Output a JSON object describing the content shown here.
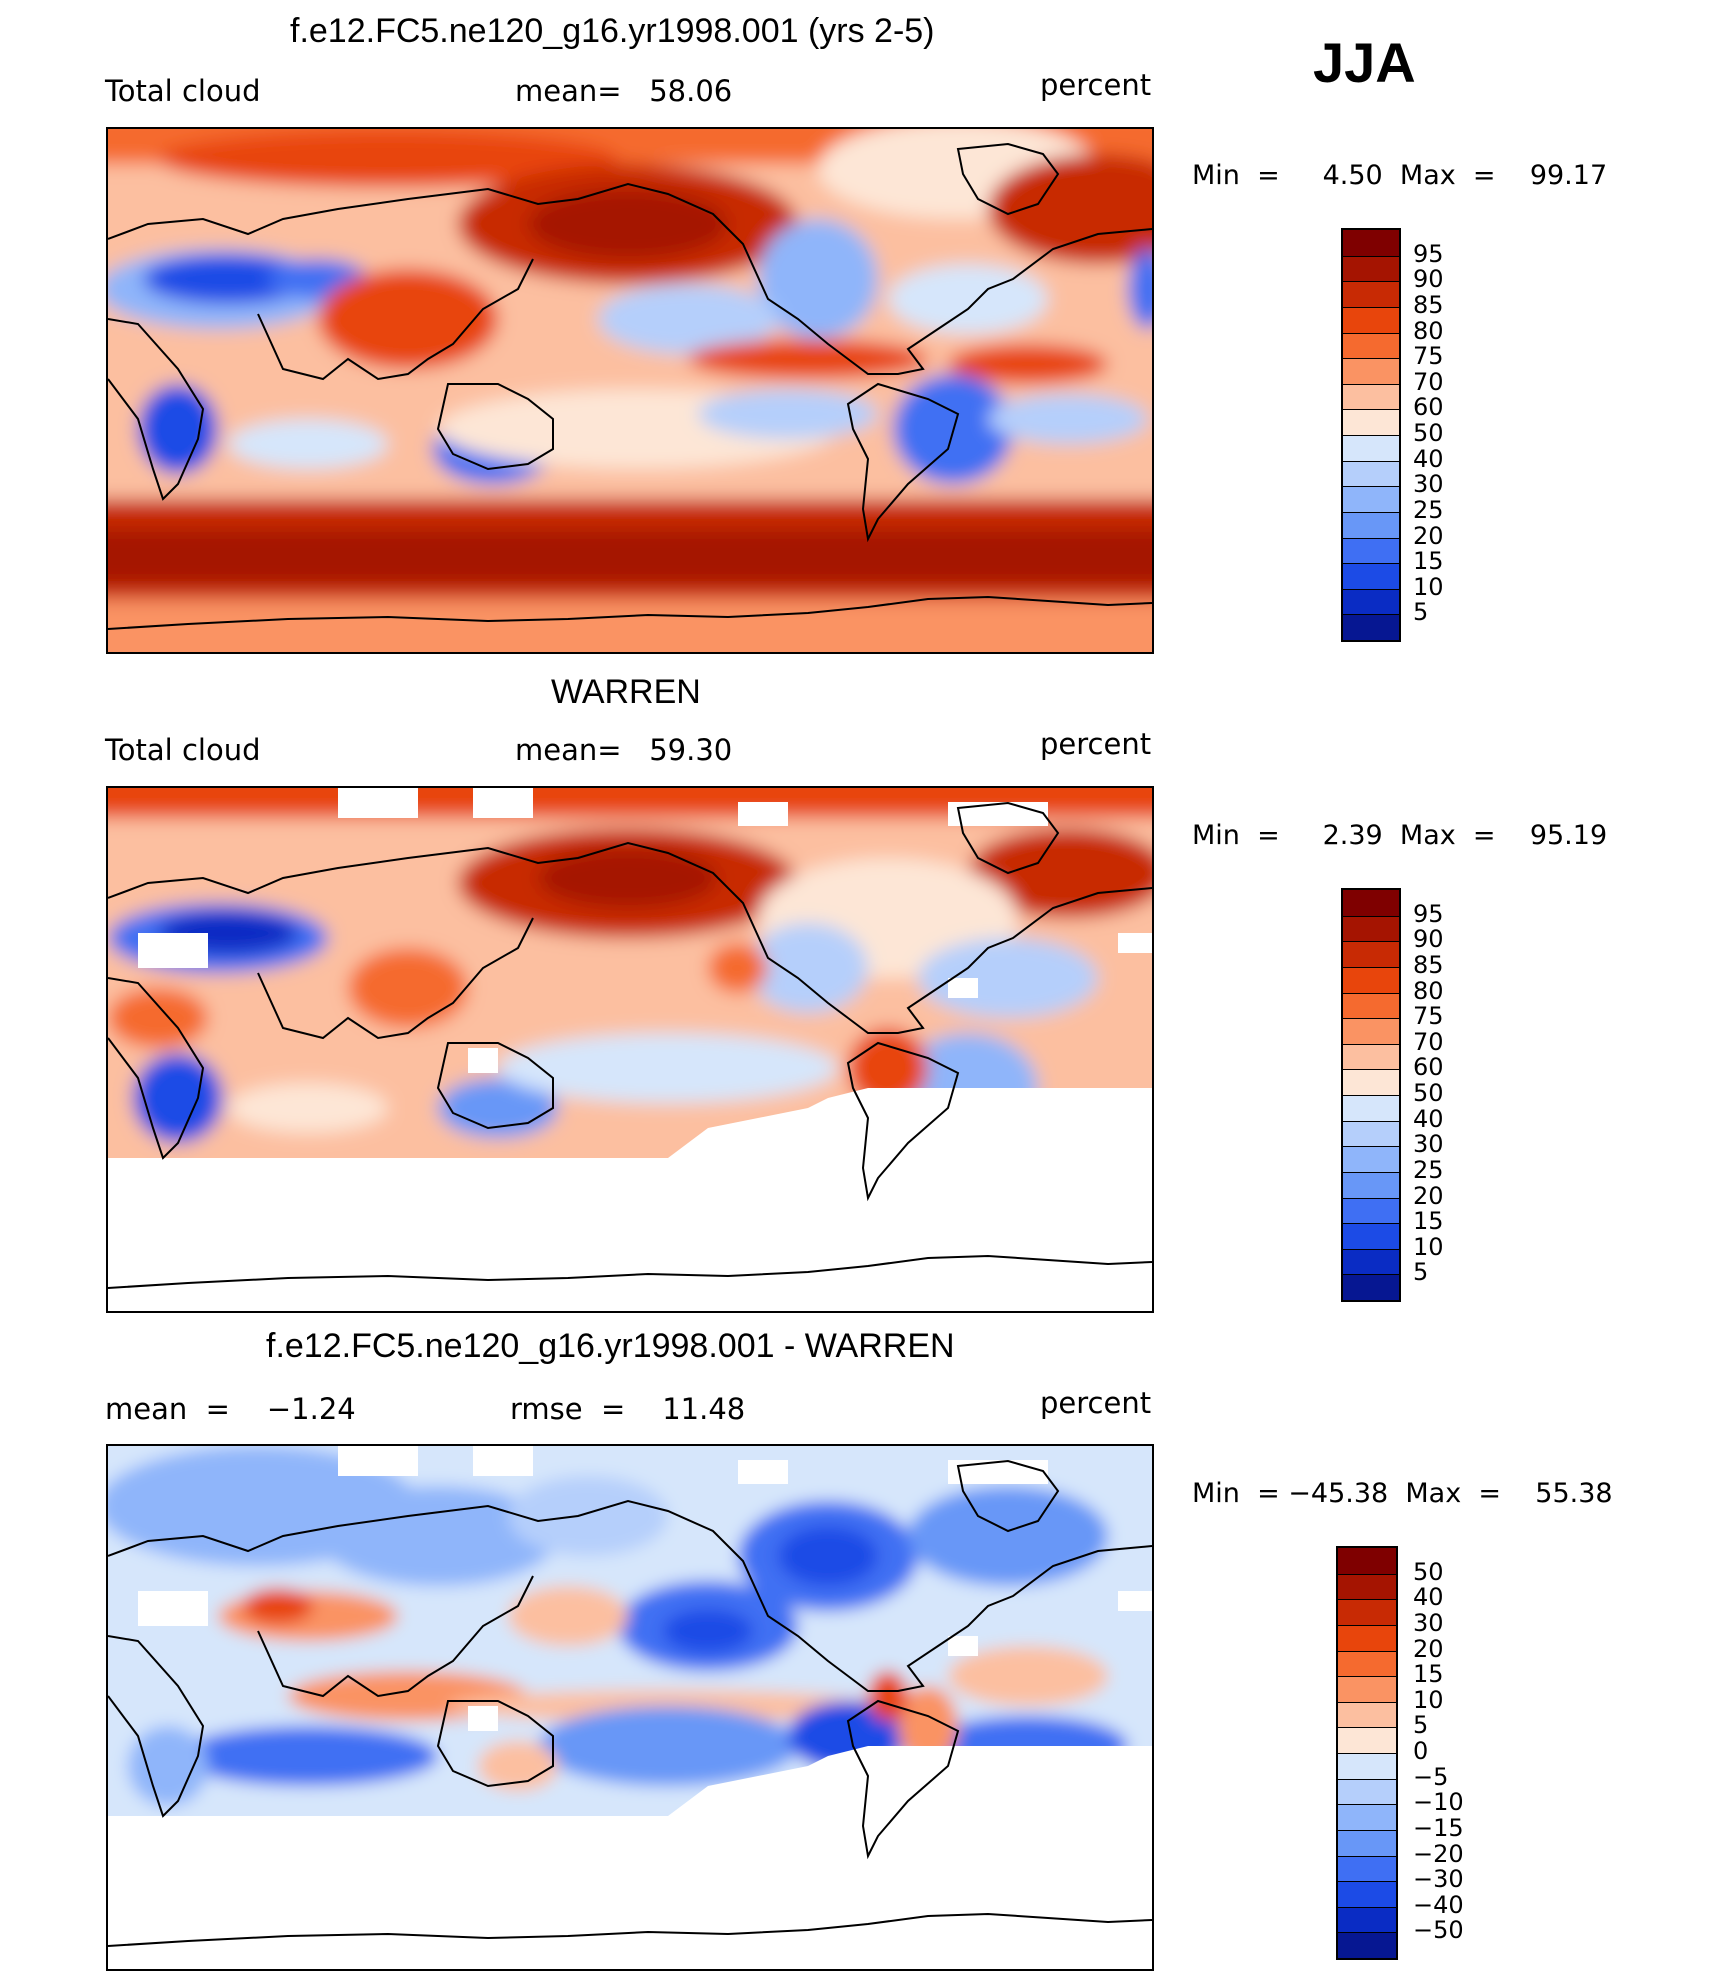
{
  "season_label": "JJA",
  "panels": [
    {
      "title": "f.e12.FC5.ne120_g16.yr1998.001 (yrs 2-5)",
      "left_text": "Total cloud",
      "center_text": "mean=   58.06",
      "units": "percent",
      "minmax": "Min  =     4.50  Max  =    99.17",
      "colorbar": {
        "labels": [
          "95",
          "90",
          "85",
          "80",
          "75",
          "70",
          "60",
          "50",
          "40",
          "30",
          "25",
          "20",
          "15",
          "10",
          "5"
        ],
        "colors": [
          "#7f0000",
          "#a51401",
          "#c82a04",
          "#e8450c",
          "#f56a2f",
          "#fa9363",
          "#fcbfa0",
          "#fde6d6",
          "#d6e6fb",
          "#b5cffb",
          "#8fb5fa",
          "#6897f7",
          "#3f6ff3",
          "#1c4be6",
          "#0a2cc4",
          "#061792"
        ]
      }
    },
    {
      "title": "WARREN",
      "left_text": "Total cloud",
      "center_text": "mean=   59.30",
      "units": "percent",
      "minmax": "Min  =     2.39  Max  =    95.19",
      "colorbar": {
        "labels": [
          "95",
          "90",
          "85",
          "80",
          "75",
          "70",
          "60",
          "50",
          "40",
          "30",
          "25",
          "20",
          "15",
          "10",
          "5"
        ],
        "colors": [
          "#7f0000",
          "#a51401",
          "#c82a04",
          "#e8450c",
          "#f56a2f",
          "#fa9363",
          "#fcbfa0",
          "#fde6d6",
          "#d6e6fb",
          "#b5cffb",
          "#8fb5fa",
          "#6897f7",
          "#3f6ff3",
          "#1c4be6",
          "#0a2cc4",
          "#061792"
        ]
      }
    },
    {
      "title": "f.e12.FC5.ne120_g16.yr1998.001 - WARREN",
      "left_text": "mean  =    −1.24",
      "center_text": "rmse  =    11.48",
      "units": "percent",
      "minmax": "Min  = −45.38  Max  =    55.38",
      "colorbar": {
        "labels": [
          "50",
          "40",
          "30",
          "20",
          "15",
          "10",
          "5",
          "0",
          "−5",
          "−10",
          "−15",
          "−20",
          "−30",
          "−40",
          "−50"
        ],
        "colors": [
          "#7f0000",
          "#a51401",
          "#c82a04",
          "#e8450c",
          "#f56a2f",
          "#fa9363",
          "#fcbfa0",
          "#fde6d6",
          "#d6e6fb",
          "#b5cffb",
          "#8fb5fa",
          "#6897f7",
          "#3f6ff3",
          "#1c4be6",
          "#0a2cc4",
          "#061792"
        ]
      }
    }
  ]
}
